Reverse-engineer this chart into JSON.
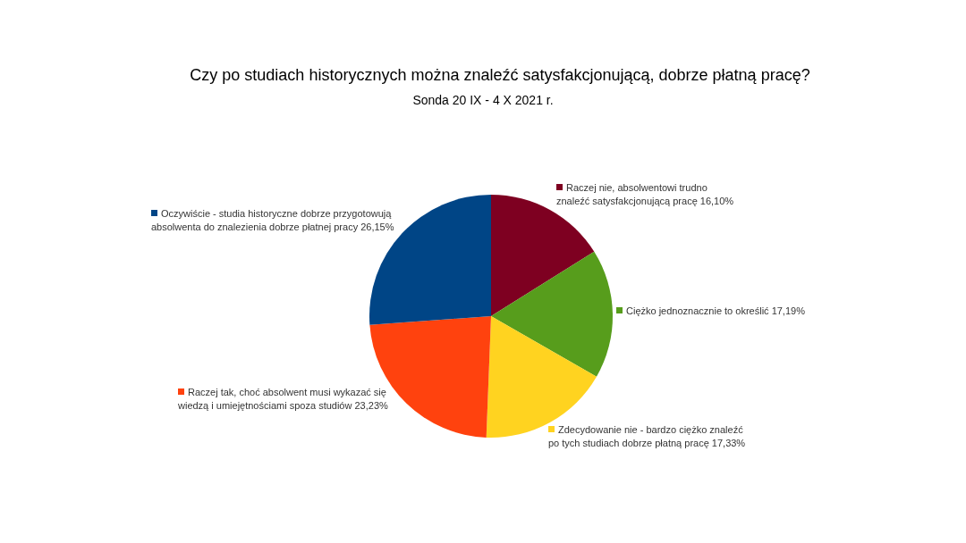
{
  "chart_data": {
    "type": "pie",
    "title": "Czy po studiach historycznych można znaleźć satysfakcjonującą, dobrze płatną pracę?",
    "subtitle": "Sonda 20 IX - 4 X 2021 r.",
    "categories": [
      "Raczej nie, absolwentowi trudno\nznaleźć satysfakcjonującą pracę",
      "Ciężko jednoznacznie to określić",
      "Zdecydowanie nie - bardzo ciężko znaleźć\npo tych studiach dobrze płatną pracę",
      "Raczej tak, choć absolwent musi wykazać się\nwiedzą i umiejętnościami spoza studiów",
      "Oczywiście - studia historyczne dobrze przygotowują\nabsolwenta do znalezienia dobrze płatnej pracy"
    ],
    "values": [
      16.1,
      17.19,
      17.33,
      23.23,
      26.15
    ],
    "value_labels": [
      "16,10%",
      "17,19%",
      "17,33%",
      "23,23%",
      "26,15%"
    ],
    "legend": "bottom left",
    "colors": [
      "#7e0021",
      "#579d1c",
      "#ffd320",
      "#ff420e",
      "#004586"
    ]
  }
}
